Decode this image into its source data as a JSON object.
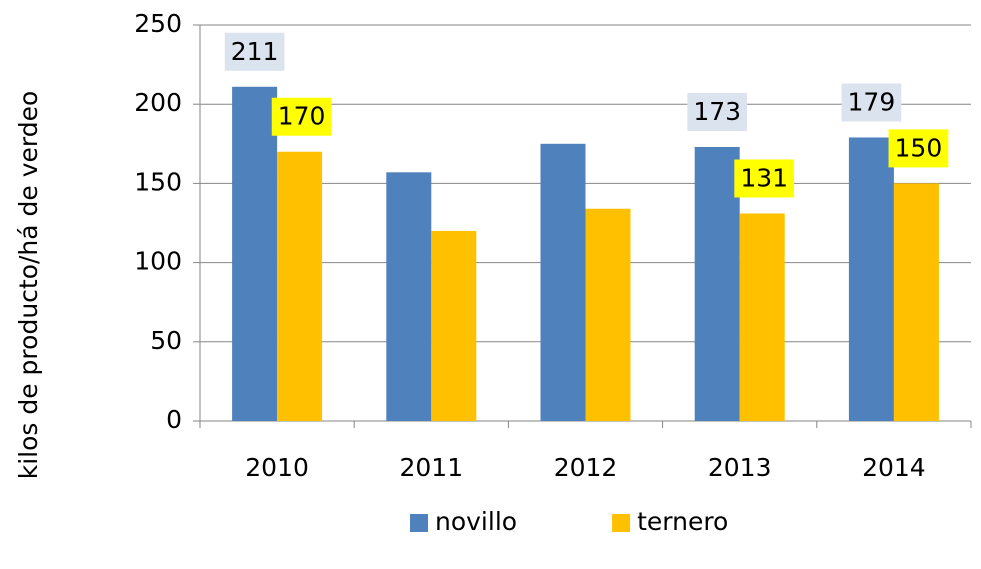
{
  "chart_data": {
    "type": "bar",
    "y_axis_label": "kilos de producto/há de verdeo",
    "categories": [
      "2010",
      "2011",
      "2012",
      "2013",
      "2014"
    ],
    "series": [
      {
        "name": "novillo",
        "color": "#4f81bd",
        "label_background": "#dbe3ee",
        "values": [
          211,
          157,
          175,
          173,
          179
        ],
        "value_labels": [
          "211",
          null,
          null,
          "173",
          "179"
        ]
      },
      {
        "name": "ternero",
        "color": "#ffc000",
        "label_background": "#ffff00",
        "values": [
          170,
          120,
          134,
          131,
          150
        ],
        "value_labels": [
          "170",
          null,
          null,
          "131",
          "150"
        ]
      }
    ],
    "ylim": [
      0,
      250
    ],
    "yticks": [
      0,
      50,
      100,
      150,
      200,
      250
    ],
    "grid": true,
    "legend": "bottom"
  }
}
